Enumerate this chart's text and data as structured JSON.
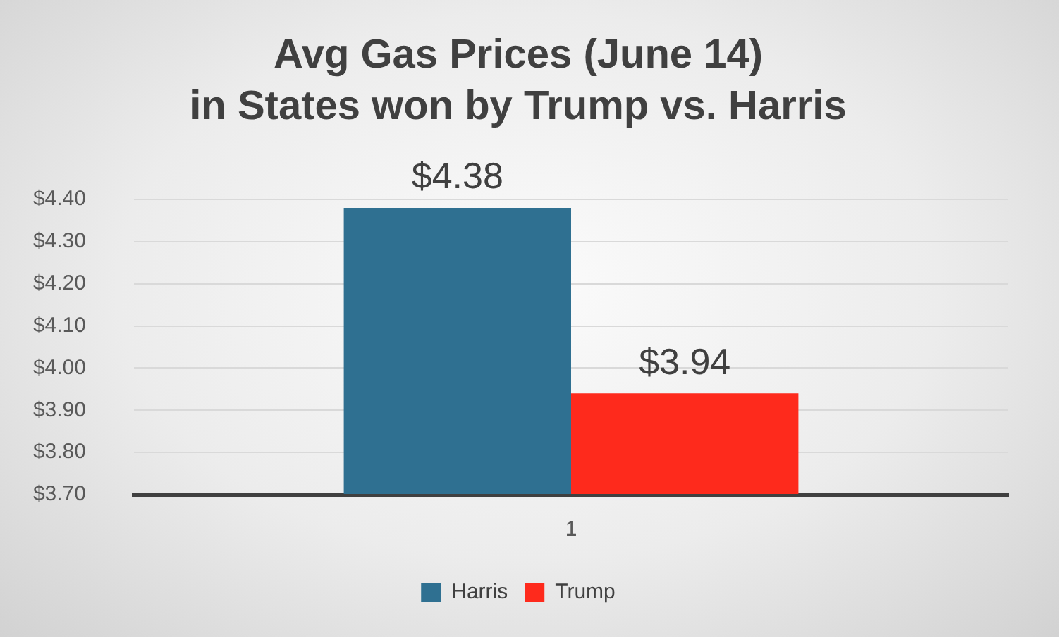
{
  "chart_data": {
    "type": "bar",
    "title": "Avg Gas Prices (June 14)\nin States won by Trump vs. Harris",
    "categories": [
      "1"
    ],
    "series": [
      {
        "name": "Harris",
        "color": "#2f7091",
        "values": [
          4.38
        ],
        "value_labels": [
          "$4.38"
        ]
      },
      {
        "name": "Trump",
        "color": "#fe2a1c",
        "values": [
          3.94
        ],
        "value_labels": [
          "$3.94"
        ]
      }
    ],
    "ylim": [
      3.7,
      4.4
    ],
    "yticks": [
      {
        "value": 3.7,
        "label": "$3.70"
      },
      {
        "value": 3.8,
        "label": "$3.80"
      },
      {
        "value": 3.9,
        "label": "$3.90"
      },
      {
        "value": 4.0,
        "label": "$4.00"
      },
      {
        "value": 4.1,
        "label": "$4.10"
      },
      {
        "value": 4.2,
        "label": "$4.20"
      },
      {
        "value": 4.3,
        "label": "$4.30"
      },
      {
        "value": 4.4,
        "label": "$4.40"
      }
    ],
    "grid": "y",
    "legend": "bottom"
  }
}
